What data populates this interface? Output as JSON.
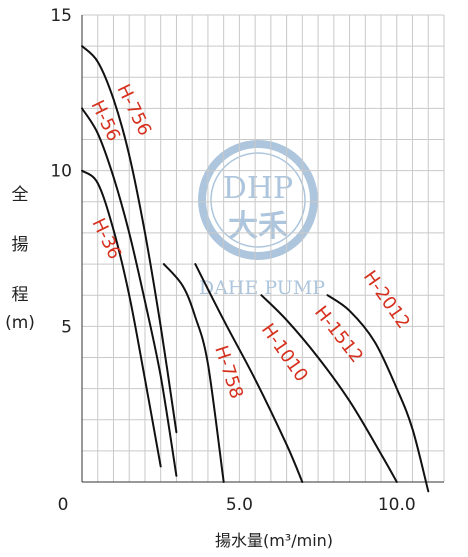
{
  "chart_data": {
    "type": "line",
    "title": "",
    "xlabel": "揚水量(m³/min)",
    "ylabel": {
      "chars": [
        "全",
        "揚",
        "程"
      ],
      "unit": "(m)"
    },
    "xlim": [
      0,
      11.5
    ],
    "ylim": [
      0,
      15
    ],
    "x_tick_labels": [
      "0",
      "5.0",
      "10.0"
    ],
    "x_ticks": [
      0,
      5.0,
      10.0
    ],
    "y_tick_labels": [
      "5",
      "10",
      "15"
    ],
    "y_ticks": [
      5,
      10,
      15
    ],
    "grid": true,
    "series": [
      {
        "name": "H-756",
        "x": [
          0,
          0.5,
          1.0,
          1.5,
          2.0,
          2.5,
          3.0
        ],
        "y": [
          14.0,
          13.5,
          12.3,
          10.5,
          8.0,
          5.0,
          1.6
        ]
      },
      {
        "name": "H-56",
        "x": [
          0,
          0.5,
          1.0,
          1.5,
          2.0,
          2.5,
          3.0
        ],
        "y": [
          12.0,
          11.2,
          9.8,
          8.0,
          5.8,
          3.4,
          0.2
        ]
      },
      {
        "name": "H-36",
        "x": [
          0,
          0.5,
          1.0,
          1.5,
          2.0,
          2.5
        ],
        "y": [
          10.0,
          9.6,
          8.1,
          6.0,
          3.3,
          0.5
        ]
      },
      {
        "name": "H-758",
        "x": [
          2.6,
          3.2,
          3.6,
          4.0,
          4.5
        ],
        "y": [
          7.0,
          6.3,
          5.3,
          3.8,
          0.0
        ]
      },
      {
        "name": "H-1010",
        "x": [
          3.6,
          4.5,
          5.5,
          6.5,
          7.0
        ],
        "y": [
          7.0,
          5.2,
          3.3,
          1.2,
          0.0
        ]
      },
      {
        "name": "H-1512",
        "x": [
          5.7,
          6.5,
          7.5,
          8.5,
          9.5,
          10.0
        ],
        "y": [
          6.0,
          5.2,
          4.0,
          2.6,
          0.9,
          0.0
        ]
      },
      {
        "name": "H-2012",
        "x": [
          7.8,
          8.5,
          9.3,
          10.0,
          10.5,
          11.0
        ],
        "y": [
          6.0,
          5.5,
          4.5,
          3.0,
          1.7,
          -0.3
        ]
      }
    ]
  },
  "watermark": {
    "logo_text": "DHP",
    "cn_text": "大禾",
    "en_text": "DAHE PUMP"
  }
}
